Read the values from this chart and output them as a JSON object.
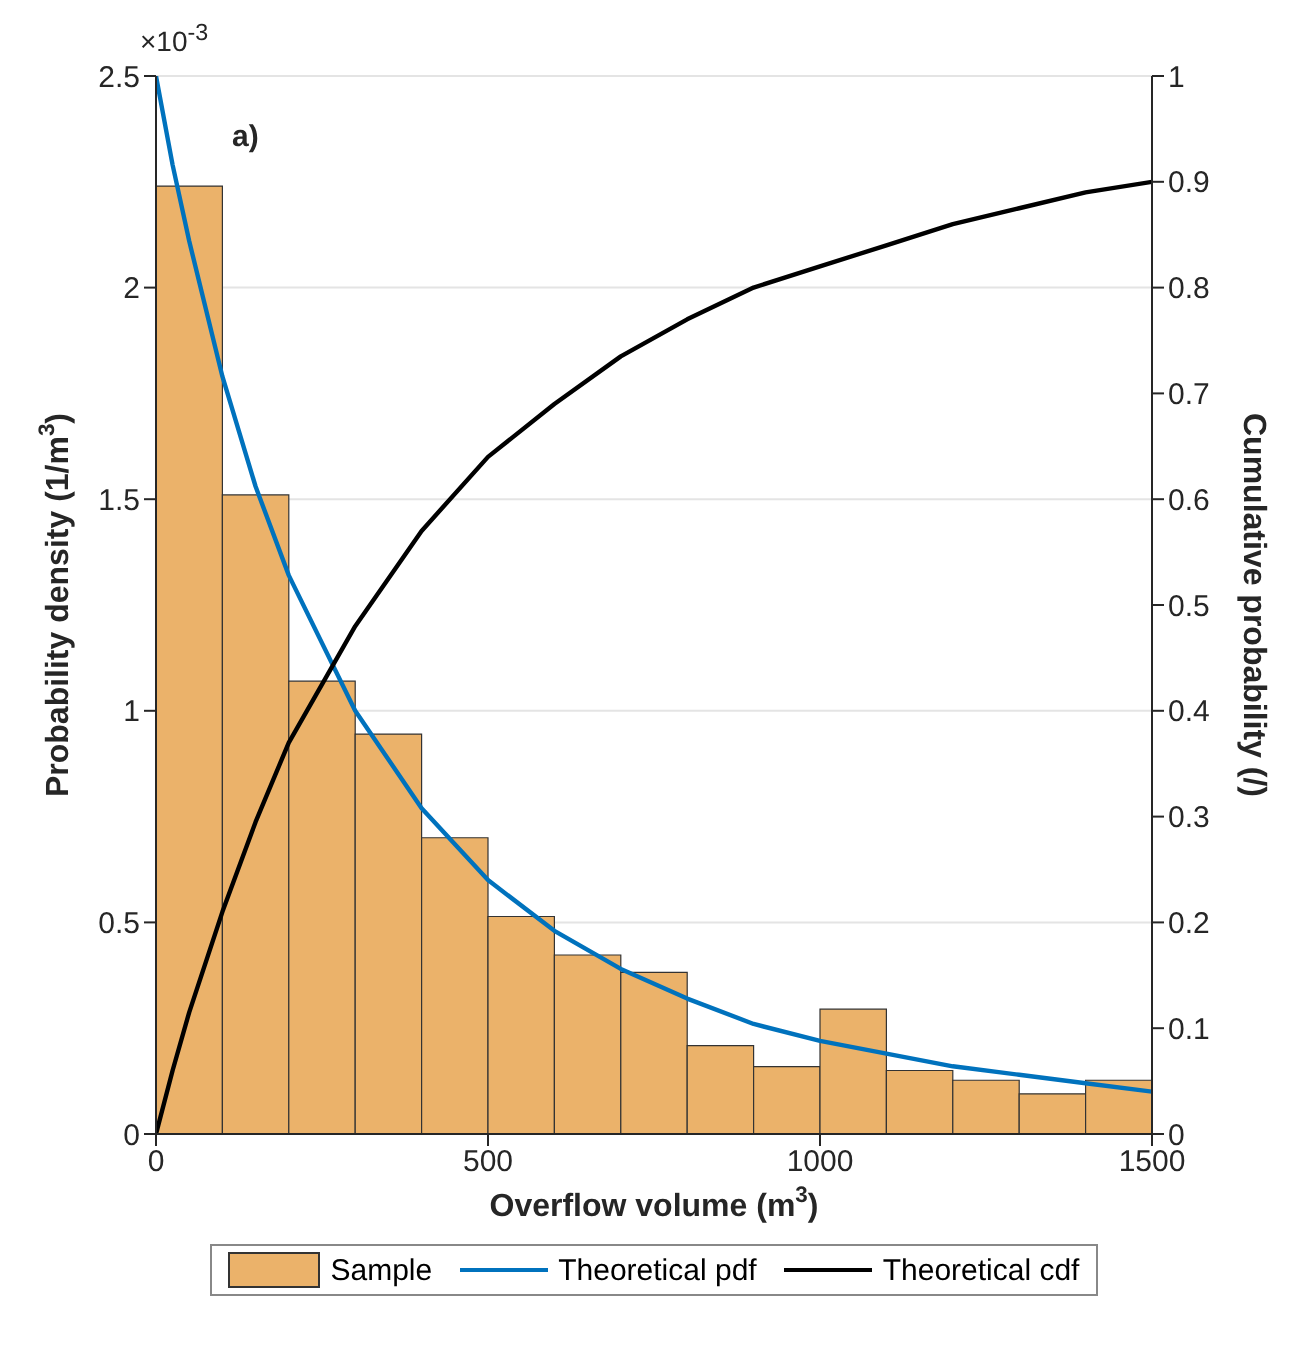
{
  "chart_data": {
    "type": "histogram",
    "xlabel": "Overflow volume (m$^{3}$)",
    "ylabel": "Probability density (1/m$^{3}$)",
    "y2label": "Cumulative probability (/)",
    "annotations": [
      "a)",
      "×10$^{-3}$"
    ],
    "bins": [
      0,
      100,
      200,
      300,
      400,
      500,
      600,
      700,
      800,
      900,
      1000,
      1100,
      1200,
      1300,
      1400,
      1500
    ],
    "series": [
      {
        "name": "Sample",
        "color": "#ebb26a",
        "values": [
          2.24,
          1.51,
          1.07,
          0.945,
          0.7,
          0.514,
          0.423,
          0.382,
          0.209,
          0.159,
          0.295,
          0.15,
          0.127,
          0.095,
          0.127
        ]
      },
      {
        "name": "Theoretical pdf",
        "type": "line",
        "color": "#0072bd",
        "x": [
          0,
          25,
          50,
          100,
          150,
          200,
          300,
          400,
          500,
          600,
          700,
          800,
          900,
          1000,
          1100,
          1200,
          1300,
          1400,
          1500
        ],
        "values": [
          2.5,
          2.29,
          2.11,
          1.79,
          1.53,
          1.32,
          1.0,
          0.77,
          0.6,
          0.48,
          0.39,
          0.32,
          0.26,
          0.22,
          0.19,
          0.16,
          0.14,
          0.12,
          0.1
        ]
      },
      {
        "name": "Theoretical cdf",
        "type": "line",
        "axis": "y2",
        "color": "#000000",
        "x": [
          0,
          25,
          50,
          100,
          150,
          200,
          300,
          400,
          500,
          600,
          700,
          800,
          900,
          1000,
          1100,
          1200,
          1300,
          1400,
          1500
        ],
        "values": [
          0,
          0.06,
          0.115,
          0.21,
          0.295,
          0.37,
          0.48,
          0.57,
          0.64,
          0.69,
          0.735,
          0.77,
          0.8,
          0.82,
          0.84,
          0.86,
          0.875,
          0.89,
          0.9
        ]
      }
    ],
    "xlim": [
      0,
      1500
    ],
    "xticks": [
      0,
      500,
      1000,
      1500
    ],
    "ylim": [
      0,
      2.5
    ],
    "yticks": [
      0,
      0.5,
      1,
      1.5,
      2,
      2.5
    ],
    "y2lim": [
      0,
      1
    ],
    "y2ticks": [
      0,
      0.1,
      0.2,
      0.3,
      0.4,
      0.5,
      0.6,
      0.7,
      0.8,
      0.9,
      1
    ],
    "grid": "y",
    "legend": "bottom",
    "marker": "none"
  }
}
